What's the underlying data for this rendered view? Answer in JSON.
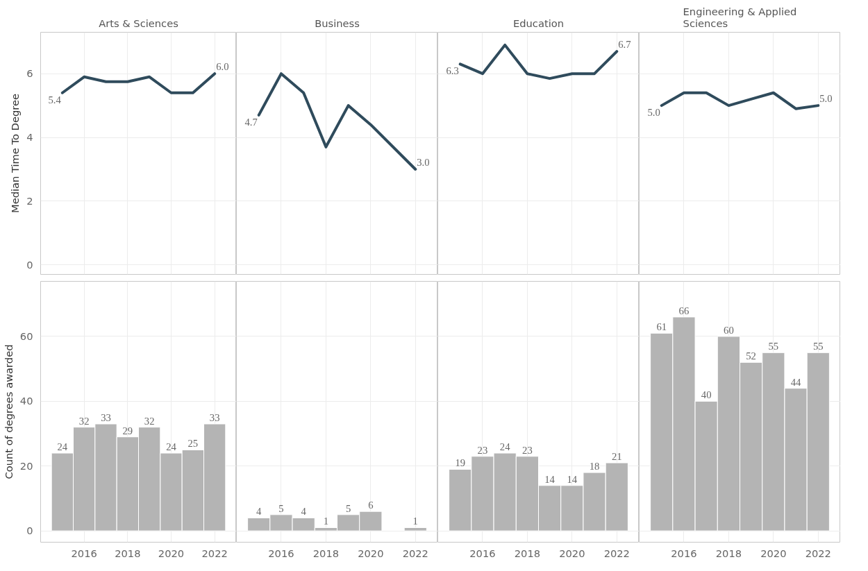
{
  "chart_data": [
    {
      "type": "line",
      "title": "Arts & Sciences",
      "ylabel": "Median Time To Degree",
      "x": [
        2015,
        2016,
        2017,
        2018,
        2019,
        2020,
        2021,
        2022
      ],
      "xlim": [
        2014,
        2023
      ],
      "xticks": [
        2016,
        2018,
        2020,
        2022
      ],
      "ylim": [
        -0.3,
        7.3
      ],
      "yticks": [
        0,
        2,
        4,
        6
      ],
      "grid": true,
      "tick_labels": "y",
      "series": [
        {
          "color": "#2f4b5c",
          "values": [
            5.4,
            5.9,
            5.75,
            5.75,
            5.9,
            5.4,
            5.4,
            6.0
          ],
          "value_labels": [
            "5.4",
            null,
            null,
            null,
            null,
            null,
            null,
            "6.0"
          ]
        }
      ]
    },
    {
      "type": "line",
      "title": "Business",
      "x": [
        2015,
        2016,
        2017,
        2018,
        2019,
        2020,
        2022
      ],
      "xlim": [
        2014,
        2023
      ],
      "xticks": [
        2016,
        2018,
        2020,
        2022
      ],
      "ylim": [
        -0.3,
        7.3
      ],
      "yticks": [
        0,
        2,
        4,
        6
      ],
      "grid": true,
      "tick_labels": false,
      "series": [
        {
          "color": "#2f4b5c",
          "values": [
            4.7,
            6.0,
            5.4,
            3.7,
            5.0,
            4.4,
            3.0
          ],
          "value_labels": [
            "4.7",
            null,
            null,
            null,
            null,
            null,
            "3.0"
          ]
        }
      ]
    },
    {
      "type": "line",
      "title": "Education",
      "x": [
        2015,
        2016,
        2017,
        2018,
        2019,
        2020,
        2021,
        2022
      ],
      "xlim": [
        2014,
        2023
      ],
      "xticks": [
        2016,
        2018,
        2020,
        2022
      ],
      "ylim": [
        -0.3,
        7.3
      ],
      "yticks": [
        0,
        2,
        4,
        6
      ],
      "grid": true,
      "tick_labels": false,
      "series": [
        {
          "color": "#2f4b5c",
          "values": [
            6.3,
            6.0,
            6.9,
            6.0,
            5.85,
            6.0,
            6.0,
            6.7
          ],
          "value_labels": [
            "6.3",
            null,
            null,
            null,
            null,
            null,
            null,
            "6.7"
          ]
        }
      ]
    },
    {
      "type": "line",
      "title": "Engineering & Applied Sciences",
      "x": [
        2015,
        2016,
        2017,
        2018,
        2019,
        2020,
        2021,
        2022
      ],
      "xlim": [
        2014,
        2023
      ],
      "xticks": [
        2016,
        2018,
        2020,
        2022
      ],
      "ylim": [
        -0.3,
        7.3
      ],
      "yticks": [
        0,
        2,
        4,
        6
      ],
      "grid": true,
      "tick_labels": false,
      "series": [
        {
          "color": "#2f4b5c",
          "values": [
            5.0,
            5.4,
            5.4,
            5.0,
            5.2,
            5.4,
            4.9,
            5.0
          ],
          "value_labels": [
            "5.0",
            null,
            null,
            null,
            null,
            null,
            null,
            "5.0"
          ]
        }
      ]
    },
    {
      "type": "bar",
      "ylabel": "Count of degrees awarded",
      "x": [
        2015,
        2016,
        2017,
        2018,
        2019,
        2020,
        2021,
        2022
      ],
      "xlim": [
        2014,
        2023
      ],
      "xticks": [
        2016,
        2018,
        2020,
        2022
      ],
      "ylim": [
        -3.5,
        77
      ],
      "yticks": [
        0,
        20,
        40,
        60
      ],
      "grid": true,
      "data_labels": true,
      "series": [
        {
          "color": "#b4b4b4",
          "values": [
            24,
            32,
            33,
            29,
            32,
            24,
            25,
            33
          ]
        }
      ]
    },
    {
      "type": "bar",
      "x": [
        2015,
        2016,
        2017,
        2018,
        2019,
        2020,
        2022
      ],
      "xlim": [
        2014,
        2023
      ],
      "xticks": [
        2016,
        2018,
        2020,
        2022
      ],
      "ylim": [
        -3.5,
        77
      ],
      "yticks": [
        0,
        20,
        40,
        60
      ],
      "grid": true,
      "data_labels": true,
      "tick_labels": "x",
      "series": [
        {
          "color": "#b4b4b4",
          "values": [
            4,
            5,
            4,
            1,
            5,
            6,
            1
          ]
        }
      ]
    },
    {
      "type": "bar",
      "x": [
        2015,
        2016,
        2017,
        2018,
        2019,
        2020,
        2021,
        2022
      ],
      "xlim": [
        2014,
        2023
      ],
      "xticks": [
        2016,
        2018,
        2020,
        2022
      ],
      "ylim": [
        -3.5,
        77
      ],
      "yticks": [
        0,
        20,
        40,
        60
      ],
      "grid": true,
      "data_labels": true,
      "tick_labels": "x",
      "series": [
        {
          "color": "#b4b4b4",
          "values": [
            19,
            23,
            24,
            23,
            14,
            14,
            18,
            21
          ]
        }
      ]
    },
    {
      "type": "bar",
      "x": [
        2015,
        2016,
        2017,
        2018,
        2019,
        2020,
        2021,
        2022
      ],
      "xlim": [
        2014,
        2023
      ],
      "xticks": [
        2016,
        2018,
        2020,
        2022
      ],
      "ylim": [
        -3.5,
        77
      ],
      "yticks": [
        0,
        20,
        40,
        60
      ],
      "grid": true,
      "data_labels": true,
      "tick_labels": "x",
      "series": [
        {
          "color": "#b4b4b4",
          "values": [
            61,
            66,
            40,
            60,
            52,
            55,
            44,
            55
          ]
        }
      ]
    }
  ]
}
